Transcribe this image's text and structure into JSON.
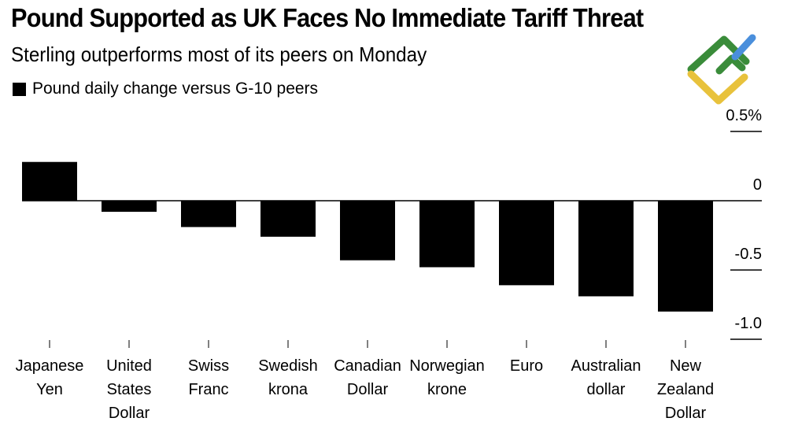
{
  "header": {
    "title": "Pound Supported as UK Faces No Immediate Tariff Threat",
    "subtitle": "Sterling outperforms most of its peers on Monday",
    "logo": "green-yellow-blue-brand-logo-icon"
  },
  "chart_data": {
    "type": "bar",
    "title": "Pound Supported as UK Faces No Immediate Tariff Threat",
    "subtitle": "Sterling outperforms most of its peers on Monday",
    "legend": [
      "Pound daily change versus G-10 peers"
    ],
    "legend_position": "top-left",
    "categories": [
      [
        "Japanese",
        "Yen"
      ],
      [
        "United",
        "States",
        "Dollar"
      ],
      [
        "Swiss",
        "Franc"
      ],
      [
        "Swedish",
        "krona"
      ],
      [
        "Canadian",
        "Dollar"
      ],
      [
        "Norwegian",
        "krone"
      ],
      [
        "Euro"
      ],
      [
        "Australian",
        "dollar"
      ],
      [
        "New",
        "Zealand",
        "Dollar"
      ]
    ],
    "series": [
      {
        "name": "Pound daily change versus G-10 peers",
        "color": "#000000",
        "values": [
          0.28,
          -0.08,
          -0.19,
          -0.26,
          -0.43,
          -0.48,
          -0.61,
          -0.69,
          -0.8
        ]
      }
    ],
    "xlabel": "",
    "ylabel": "",
    "ylim": [
      -1.0,
      0.5
    ],
    "yticks": [
      0.5,
      0,
      -0.5,
      -1.0
    ],
    "ytick_labels": [
      "0.5%",
      "0",
      "-0.5",
      "-1.0"
    ],
    "y_axis_position": "right",
    "grid": false
  }
}
